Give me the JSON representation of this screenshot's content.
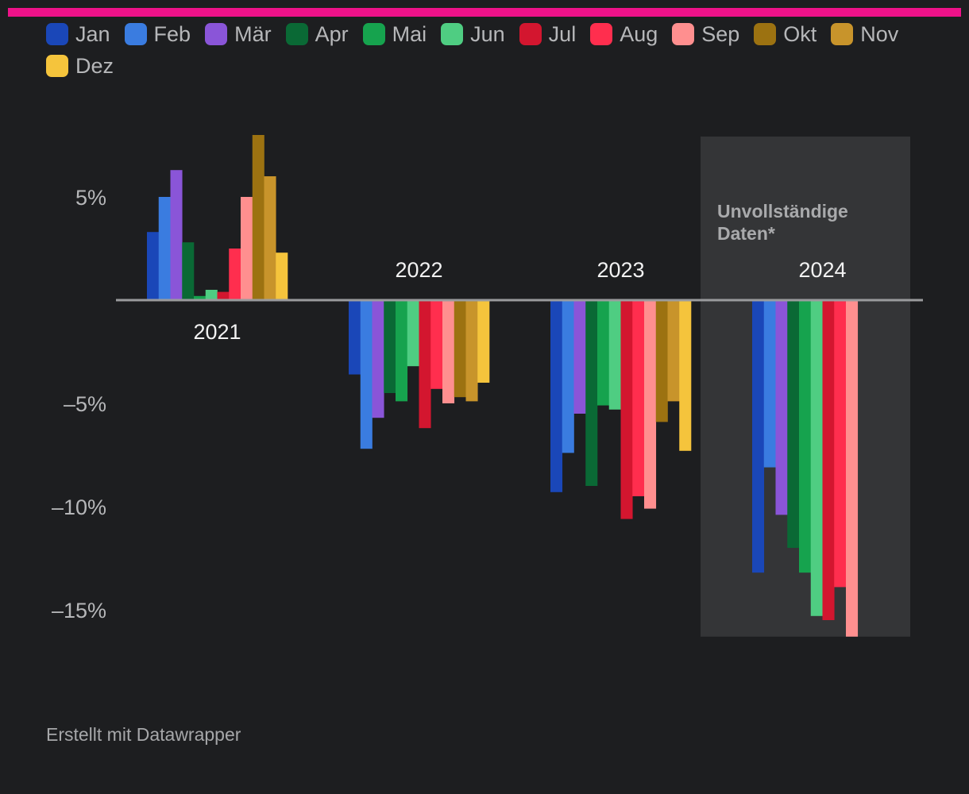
{
  "chart_data": {
    "type": "bar",
    "categories": [
      "2021",
      "2022",
      "2023",
      "2024"
    ],
    "series": [
      {
        "name": "Jan",
        "color": "#1a47b8",
        "values": [
          3.3,
          -3.6,
          -9.3,
          -13.2
        ]
      },
      {
        "name": "Feb",
        "color": "#3a7ce0",
        "values": [
          5.0,
          -7.2,
          -7.4,
          -8.1
        ]
      },
      {
        "name": "Mär",
        "color": "#8a55d8",
        "values": [
          6.3,
          -5.7,
          -5.5,
          -10.4
        ]
      },
      {
        "name": "Apr",
        "color": "#0a6935",
        "values": [
          2.8,
          -4.5,
          -9.0,
          -12.0
        ]
      },
      {
        "name": "Mai",
        "color": "#16a34e",
        "values": [
          0.2,
          -4.9,
          -5.1,
          -13.2
        ]
      },
      {
        "name": "Jun",
        "color": "#4fcd82",
        "values": [
          0.5,
          -3.2,
          -5.3,
          -15.3
        ]
      },
      {
        "name": "Jul",
        "color": "#d3162f",
        "values": [
          0.4,
          -6.2,
          -10.6,
          -15.5
        ]
      },
      {
        "name": "Aug",
        "color": "#ff2e4e",
        "values": [
          2.5,
          -4.3,
          -9.5,
          -13.9
        ]
      },
      {
        "name": "Sep",
        "color": "#ff8f8f",
        "values": [
          5.0,
          -5.0,
          -10.1,
          -16.3
        ]
      },
      {
        "name": "Okt",
        "color": "#9c7211",
        "values": [
          8.0,
          -4.7,
          -5.9,
          null
        ]
      },
      {
        "name": "Nov",
        "color": "#c8942b",
        "values": [
          6.0,
          -4.9,
          -4.9,
          null
        ]
      },
      {
        "name": "Dez",
        "color": "#f5c43c",
        "values": [
          2.3,
          -4.0,
          -7.3,
          null
        ]
      }
    ],
    "ylim": [
      -16.3,
      8.0
    ],
    "y_ticks": [
      {
        "value": 5,
        "label": "5%"
      },
      {
        "value": -5,
        "label": "–5%"
      },
      {
        "value": -10,
        "label": "–10%"
      },
      {
        "value": -15,
        "label": "–15%"
      }
    ],
    "highlight": {
      "category": "2024",
      "label_lines": [
        "Unvollständige",
        "Daten*"
      ]
    },
    "legend_position": "top-left",
    "grid": false
  },
  "footer": "Erstellt mit Datawrapper"
}
